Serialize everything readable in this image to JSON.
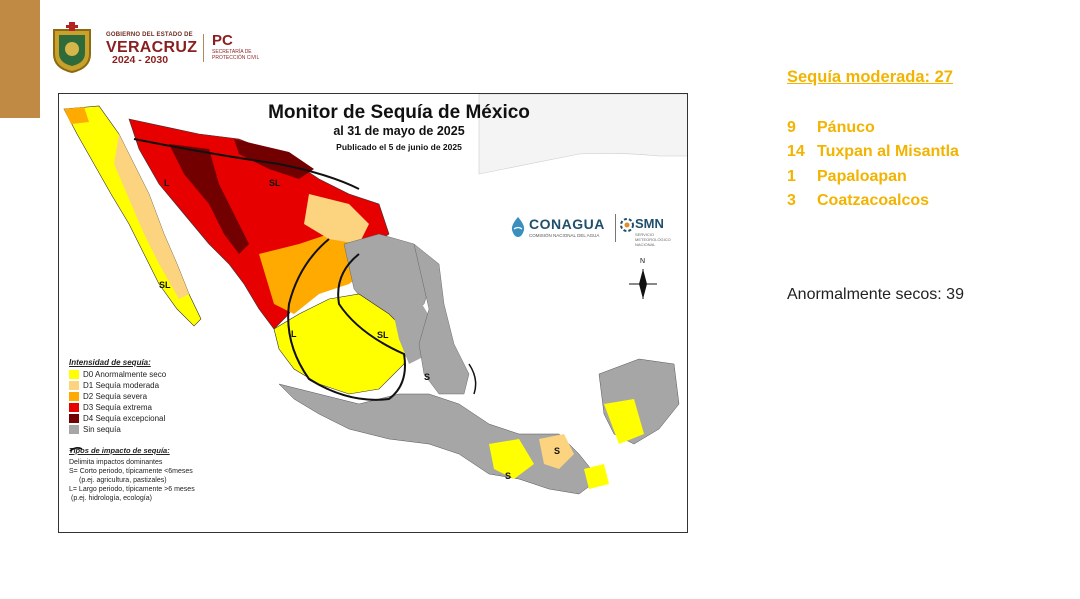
{
  "header": {
    "gov_small": "GOBIERNO DEL ESTADO DE",
    "gov_state": "VERACRUZ",
    "gov_years": "2024 - 2030",
    "pc": "PC",
    "pc_sub": "SECRETARÍA DE PROTECCIÓN CIVIL"
  },
  "map": {
    "title": "Monitor de Sequía de México",
    "subtitle": "al 31 de mayo de 2025",
    "published": "Publicado el 5 de junio de 2025",
    "labels": {
      "L": "L",
      "SL": "SL",
      "S": "S",
      "north": "N"
    },
    "legend": {
      "heading": "Intensidad de sequía:",
      "items": [
        {
          "code": "D0",
          "label": "D0 Anormalmente seco",
          "color": "#ffff00"
        },
        {
          "code": "D1",
          "label": "D1 Sequía moderada",
          "color": "#fcd37f"
        },
        {
          "code": "D2",
          "label": "D2 Sequía severa",
          "color": "#ffaa00"
        },
        {
          "code": "D3",
          "label": "D3 Sequía extrema",
          "color": "#e60000"
        },
        {
          "code": "D4",
          "label": "D4 Sequía excepcional",
          "color": "#730000"
        },
        {
          "code": "none",
          "label": "Sin sequía",
          "color": "#a6a6a6"
        }
      ]
    },
    "impact": {
      "heading": "Tipos de impacto de sequía:",
      "line1": "Delimita impactos dominantes",
      "line2": "S= Corto periodo, típicamente <6meses",
      "line3": "(p.ej. agricultura, pastizales)",
      "line4": "L= Largo periodo, típicamente >6 meses",
      "line5": "(p.ej. hidrología, ecología)"
    },
    "logos": {
      "conagua": "CONAGUA",
      "conagua_sub": "COMISIÓN NACIONAL DEL AGUA",
      "smn": "SMN",
      "smn_sub": "SERVICIO METEOROLÓGICO NACIONAL"
    }
  },
  "summary": {
    "moderate_heading": "Sequía moderada: 27",
    "regions": [
      {
        "count": "9",
        "name": "Pánuco"
      },
      {
        "count": "14",
        "name": "Tuxpan al Misantla"
      },
      {
        "count": "1",
        "name": "Papaloapan"
      },
      {
        "count": "3",
        "name": "Coatzacoalcos"
      }
    ],
    "abnormal": "Anormalmente secos: 39"
  }
}
